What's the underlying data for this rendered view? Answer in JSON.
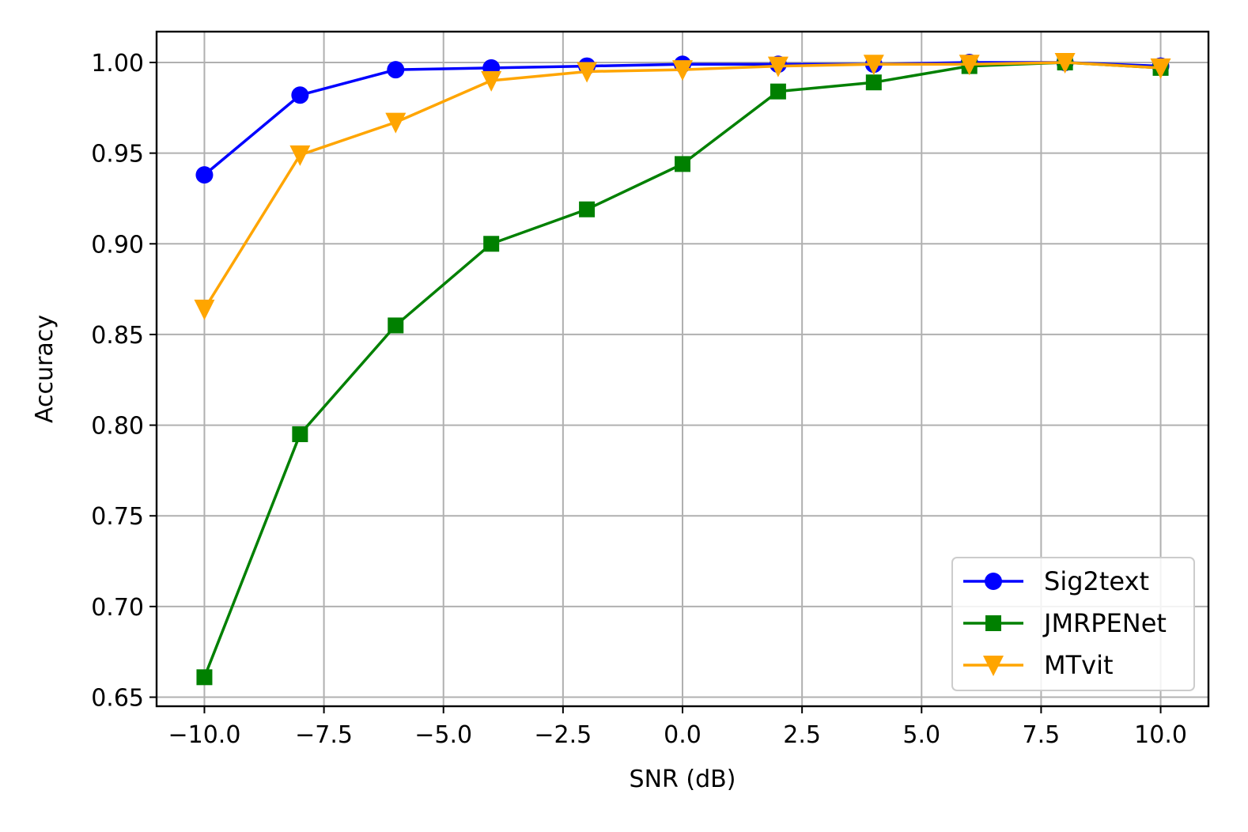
{
  "chart_data": {
    "type": "line",
    "title": "",
    "xlabel": "SNR (dB)",
    "ylabel": "Accuracy",
    "xlim": [
      -11,
      11
    ],
    "ylim": [
      0.645,
      1.017
    ],
    "x_ticks": [
      -10.0,
      -7.5,
      -5.0,
      -2.5,
      0.0,
      2.5,
      5.0,
      7.5,
      10.0
    ],
    "x_tick_labels": [
      "−10.0",
      "−7.5",
      "−5.0",
      "−2.5",
      "0.0",
      "2.5",
      "5.0",
      "7.5",
      "10.0"
    ],
    "y_ticks": [
      0.65,
      0.7,
      0.75,
      0.8,
      0.85,
      0.9,
      0.95,
      1.0
    ],
    "y_tick_labels": [
      "0.65",
      "0.70",
      "0.75",
      "0.80",
      "0.85",
      "0.90",
      "0.95",
      "1.00"
    ],
    "grid": true,
    "legend_position": "bottom-right",
    "x": [
      -10,
      -8,
      -6,
      -4,
      -2,
      0,
      2,
      4,
      6,
      8,
      10
    ],
    "series": [
      {
        "name": "Sig2text",
        "color": "#0000ff",
        "marker": "circle",
        "values": [
          0.938,
          0.982,
          0.996,
          0.997,
          0.998,
          0.999,
          0.999,
          0.999,
          1.0,
          1.0,
          0.998
        ]
      },
      {
        "name": "JMRPENet",
        "color": "#008000",
        "marker": "square",
        "values": [
          0.661,
          0.795,
          0.855,
          0.9,
          0.919,
          0.944,
          0.984,
          0.989,
          0.998,
          1.0,
          0.997
        ]
      },
      {
        "name": "MTvit",
        "color": "#ffa500",
        "marker": "triangle-down",
        "values": [
          0.864,
          0.949,
          0.967,
          0.99,
          0.995,
          0.996,
          0.998,
          0.999,
          0.999,
          1.0,
          0.997
        ]
      }
    ]
  }
}
